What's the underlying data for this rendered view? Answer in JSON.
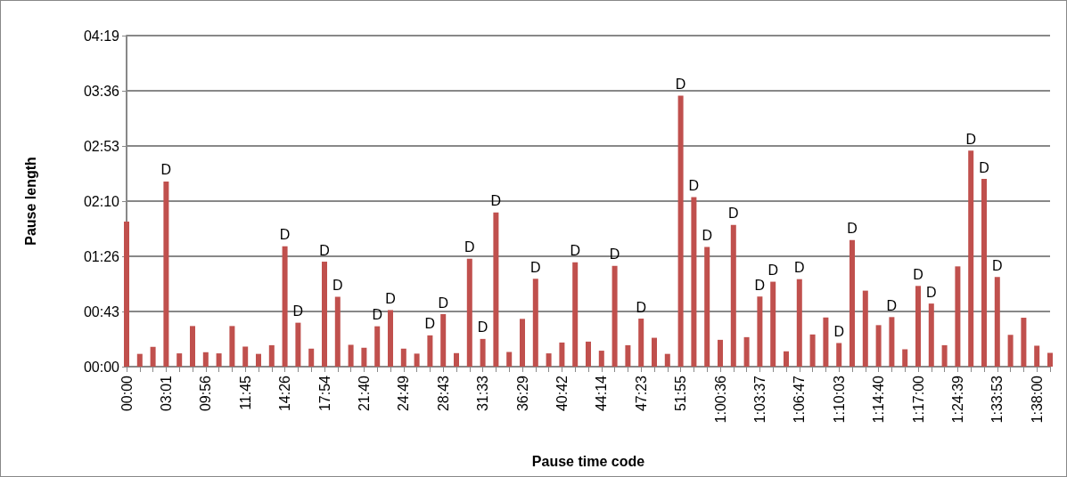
{
  "chart_data": {
    "type": "bar",
    "xlabel": "Pause time code",
    "ylabel": "Pause length",
    "color": "#c0504d",
    "grid": "y",
    "categories": [
      "00:00",
      null,
      null,
      "03:01",
      null,
      null,
      "09:56",
      null,
      null,
      "11:45",
      null,
      null,
      "14:26",
      null,
      null,
      "17:54",
      null,
      null,
      "21:40",
      null,
      null,
      "24:49",
      null,
      null,
      "28:43",
      null,
      null,
      "31:33",
      null,
      null,
      "36:29",
      null,
      null,
      "40:42",
      null,
      null,
      "44:14",
      null,
      null,
      "47:23",
      null,
      null,
      "51:55",
      null,
      null,
      "1:00:36",
      null,
      null,
      "1:03:37",
      null,
      null,
      "1:06:47",
      null,
      null,
      "1:10:03",
      null,
      null,
      "1:14:40",
      null,
      null,
      "1:17:00",
      null,
      null,
      "1:24:39",
      null,
      null,
      "1:33:53",
      null,
      null,
      "1:38:00",
      null
    ],
    "values": [
      113.5,
      10,
      15.5,
      145,
      10.4,
      31.8,
      11.3,
      10.4,
      31.8,
      15.7,
      10,
      16.8,
      94.2,
      34.4,
      14.1,
      82.2,
      54.7,
      17.1,
      14.8,
      31.6,
      44.3,
      14.1,
      10.2,
      24.5,
      41.1,
      10.6,
      84.5,
      21.7,
      120.7,
      11.5,
      37.4,
      68.8,
      10.4,
      18.9,
      81.7,
      19.6,
      12.5,
      78.9,
      16.8,
      37.6,
      22.6,
      10,
      212.1,
      132.7,
      93.7,
      21,
      111,
      23.1,
      54.9,
      66.5,
      12,
      68.5,
      25.2,
      38.5,
      18.5,
      99.2,
      59.5,
      32.5,
      38.8,
      13.6,
      63.2,
      49.4,
      16.8,
      78.5,
      169.2,
      147,
      70.2,
      24.9,
      38.3,
      16.4,
      10.8
    ],
    "value_labels": [
      null,
      null,
      null,
      "D",
      null,
      null,
      null,
      null,
      null,
      null,
      null,
      null,
      "D",
      "D",
      null,
      "D",
      "D",
      null,
      null,
      "D",
      "D",
      null,
      null,
      "D",
      "D",
      null,
      "D",
      "D",
      "D",
      null,
      null,
      "D",
      null,
      null,
      "D",
      null,
      null,
      "D",
      null,
      "D",
      null,
      null,
      "D",
      "D",
      "D",
      null,
      "D",
      null,
      "D",
      "D",
      null,
      "D",
      null,
      null,
      "D",
      "D",
      null,
      null,
      "D",
      null,
      "D",
      "D",
      null,
      null,
      "D",
      "D",
      "D",
      null,
      null,
      null,
      null
    ],
    "ylim": [
      0,
      259.2
    ],
    "yticks": [
      {
        "value": 0,
        "label": "00:00"
      },
      {
        "value": 43.2,
        "label": "00:43"
      },
      {
        "value": 86.4,
        "label": "01:26"
      },
      {
        "value": 129.6,
        "label": "02:10"
      },
      {
        "value": 172.8,
        "label": "02:53"
      },
      {
        "value": 216,
        "label": "03:36"
      },
      {
        "value": 259.2,
        "label": "04:19"
      }
    ]
  }
}
